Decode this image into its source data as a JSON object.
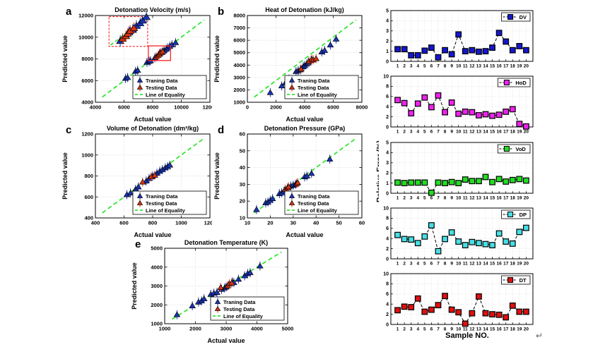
{
  "colors": {
    "training": "#1A35B8",
    "testing": "#D93511",
    "equality_line": "#33E633",
    "dv": "#1616CF",
    "hod": "#EE22EE",
    "vod": "#22DD22",
    "dp": "#45E0E6",
    "dt": "#DD1111",
    "grid": "#DBDBDB",
    "axis_box": "#000000",
    "zoom_box": "#FF2222",
    "marker_edge": "#000000"
  },
  "legend": {
    "training": "Traning Data",
    "testing": "Testing Data",
    "equality": "Line of Equality"
  },
  "right_column": {
    "ylabel": "Relative Error (%)",
    "xlabel": "Sample NO."
  },
  "misc": {
    "return_mark": "↵"
  },
  "chart_data": [
    {
      "kind": "scatter",
      "panel_label": "a",
      "title": "Detonation Velocity (m/s)",
      "xlabel": "Actual value",
      "ylabel": "Predicted value",
      "xlim": [
        4000,
        12000
      ],
      "ylim": [
        4000,
        12000
      ],
      "xticks": [
        4000,
        6000,
        8000,
        10000,
        12000
      ],
      "yticks": [
        4000,
        6000,
        8000,
        10000,
        12000
      ],
      "training": [
        [
          6100,
          6200
        ],
        [
          6250,
          6280
        ],
        [
          6800,
          6850
        ],
        [
          6950,
          6950
        ],
        [
          7600,
          7680
        ],
        [
          7750,
          7780
        ],
        [
          7850,
          7830
        ],
        [
          8150,
          8100
        ],
        [
          8500,
          8500
        ],
        [
          8650,
          8600
        ],
        [
          8800,
          8780
        ],
        [
          8950,
          8900
        ],
        [
          9050,
          9020
        ],
        [
          9200,
          9180
        ],
        [
          9350,
          9300
        ],
        [
          9600,
          9500
        ]
      ],
      "testing": [
        [
          8250,
          8200
        ],
        [
          8380,
          8320
        ],
        [
          8450,
          8430
        ],
        [
          8550,
          8560
        ],
        [
          8700,
          8680
        ]
      ],
      "zoom_rect": [
        7700,
        7850,
        9250,
        9200
      ],
      "inset_rect": [
        4950,
        9150,
        7650,
        11900
      ]
    },
    {
      "kind": "scatter",
      "panel_label": "b",
      "title": "Heat of Detonation (kJ/kg)",
      "xlabel": "Actual value",
      "ylabel": "Predicted value",
      "xlim": [
        0,
        8000
      ],
      "ylim": [
        1000,
        8000
      ],
      "xticks": [
        0,
        2000,
        4000,
        6000,
        8000
      ],
      "yticks": [
        1000,
        2000,
        3000,
        4000,
        5000,
        6000,
        7000,
        8000
      ],
      "training": [
        [
          1600,
          1780
        ],
        [
          2400,
          2320
        ],
        [
          2650,
          2550
        ],
        [
          2900,
          2870
        ],
        [
          3400,
          3480
        ],
        [
          3550,
          3560
        ],
        [
          3700,
          3620
        ],
        [
          3900,
          3870
        ],
        [
          4000,
          3960
        ],
        [
          4150,
          4100
        ],
        [
          4250,
          4180
        ],
        [
          4450,
          4380
        ],
        [
          5200,
          5060
        ],
        [
          5400,
          5180
        ],
        [
          5800,
          5620
        ],
        [
          6200,
          6100
        ]
      ],
      "testing": [
        [
          3750,
          3680
        ],
        [
          4300,
          4310
        ],
        [
          4500,
          4460
        ],
        [
          4600,
          4420
        ],
        [
          4800,
          4520
        ]
      ]
    },
    {
      "kind": "scatter",
      "panel_label": "c",
      "title": "Volume of Detonation (dm³/kg)",
      "xlabel": "Actual value",
      "ylabel": "Predicted value",
      "xlim": [
        400,
        1200
      ],
      "ylim": [
        400,
        1200
      ],
      "xticks": [
        400,
        600,
        800,
        1000,
        1200
      ],
      "yticks": [
        400,
        600,
        800,
        1000,
        1200
      ],
      "training": [
        [
          620,
          622
        ],
        [
          645,
          638
        ],
        [
          680,
          672
        ],
        [
          700,
          696
        ],
        [
          755,
          752
        ],
        [
          775,
          776
        ],
        [
          800,
          800
        ],
        [
          830,
          826
        ],
        [
          850,
          846
        ],
        [
          868,
          860
        ],
        [
          888,
          878
        ],
        [
          905,
          890
        ],
        [
          920,
          903
        ]
      ],
      "testing": [
        [
          730,
          742
        ],
        [
          790,
          792
        ],
        [
          815,
          808
        ]
      ]
    },
    {
      "kind": "scatter",
      "panel_label": "d",
      "title": "Detonation Pressure (GPa)",
      "xlabel": "Actual value",
      "ylabel": "Predicted value",
      "xlim": [
        10,
        60
      ],
      "ylim": [
        10,
        60
      ],
      "xticks": [
        10,
        20,
        30,
        40,
        50,
        60
      ],
      "yticks": [
        10,
        20,
        30,
        40,
        50,
        60
      ],
      "training": [
        [
          14,
          15
        ],
        [
          18,
          19
        ],
        [
          19,
          19.5
        ],
        [
          20,
          20.5
        ],
        [
          21,
          21.5
        ],
        [
          24,
          24.5
        ],
        [
          25,
          25
        ],
        [
          26,
          26
        ],
        [
          29,
          29
        ],
        [
          30,
          29.5
        ],
        [
          31,
          30
        ],
        [
          35,
          34.5
        ],
        [
          36,
          35
        ],
        [
          38,
          36.5
        ],
        [
          46,
          45
        ]
      ],
      "testing": [
        [
          26.5,
          27
        ],
        [
          27.5,
          28
        ],
        [
          28,
          28.5
        ],
        [
          31.5,
          30.5
        ],
        [
          32,
          31
        ]
      ]
    },
    {
      "kind": "scatter",
      "panel_label": "e",
      "title": "Detonation Temperature (K)",
      "xlabel": "Actual value",
      "ylabel": "Predicted value",
      "xlim": [
        1000,
        5000
      ],
      "ylim": [
        1000,
        5000
      ],
      "xticks": [
        1000,
        2000,
        3000,
        4000,
        5000
      ],
      "yticks": [
        1000,
        2000,
        3000,
        4000,
        5000
      ],
      "training": [
        [
          1400,
          1480
        ],
        [
          1900,
          1950
        ],
        [
          2100,
          2150
        ],
        [
          2200,
          2210
        ],
        [
          2280,
          2320
        ],
        [
          2500,
          2560
        ],
        [
          2600,
          2620
        ],
        [
          2700,
          2660
        ],
        [
          2850,
          2820
        ],
        [
          2950,
          2900
        ],
        [
          3000,
          2950
        ],
        [
          3200,
          3220
        ],
        [
          3250,
          3180
        ],
        [
          3400,
          3360
        ],
        [
          3600,
          3540
        ],
        [
          3700,
          3660
        ],
        [
          3780,
          3710
        ],
        [
          4100,
          4060
        ]
      ],
      "testing": [
        [
          2820,
          2920
        ],
        [
          3050,
          3010
        ],
        [
          3100,
          3120
        ],
        [
          3180,
          3160
        ]
      ]
    },
    {
      "kind": "error_line",
      "label": "DV",
      "color_key": "dv",
      "ylim": [
        0,
        5
      ],
      "yticks": [
        0,
        1,
        2,
        3,
        4,
        5
      ],
      "samples": [
        1,
        2,
        3,
        4,
        5,
        6,
        7,
        8,
        9,
        10,
        11,
        12,
        13,
        14,
        15,
        16,
        17,
        18,
        19,
        20
      ],
      "values": [
        1.2,
        1.2,
        0.6,
        0.6,
        1.05,
        1.35,
        0.4,
        1.1,
        0.7,
        2.65,
        1.0,
        1.1,
        0.95,
        1.0,
        1.35,
        2.8,
        1.95,
        1.1,
        1.5,
        1.1
      ]
    },
    {
      "kind": "error_line",
      "label": "HoD",
      "color_key": "hod",
      "ylim": [
        0,
        10
      ],
      "yticks": [
        0,
        2,
        4,
        6,
        8,
        10
      ],
      "samples": [
        1,
        2,
        3,
        4,
        5,
        6,
        7,
        8,
        9,
        10,
        11,
        12,
        13,
        14,
        15,
        16,
        17,
        18,
        19,
        20
      ],
      "values": [
        5.3,
        4.7,
        2.7,
        4.6,
        5.8,
        3.9,
        6.2,
        2.9,
        4.8,
        2.6,
        3.0,
        2.9,
        2.3,
        2.5,
        2.2,
        2.4,
        3.0,
        3.5,
        0.6,
        0.1
      ]
    },
    {
      "kind": "error_line",
      "label": "VoD",
      "color_key": "vod",
      "ylim": [
        0,
        5
      ],
      "yticks": [
        0,
        1,
        2,
        3,
        4,
        5
      ],
      "samples": [
        1,
        2,
        3,
        4,
        5,
        6,
        7,
        8,
        9,
        10,
        11,
        12,
        13,
        14,
        15,
        16,
        17,
        18,
        19,
        20
      ],
      "values": [
        1.05,
        1.0,
        1.05,
        1.05,
        1.05,
        0.05,
        1.05,
        1.0,
        1.1,
        1.0,
        1.35,
        1.2,
        1.2,
        1.6,
        1.1,
        1.4,
        1.15,
        1.3,
        1.4,
        1.25
      ]
    },
    {
      "kind": "error_line",
      "label": "DP",
      "color_key": "dp",
      "ylim": [
        0,
        10
      ],
      "yticks": [
        0,
        2,
        4,
        6,
        8,
        10
      ],
      "samples": [
        1,
        2,
        3,
        4,
        5,
        6,
        7,
        8,
        9,
        10,
        11,
        12,
        13,
        14,
        15,
        16,
        17,
        18,
        19,
        20
      ],
      "values": [
        4.7,
        3.9,
        3.8,
        3.1,
        4.4,
        6.6,
        1.5,
        3.9,
        5.2,
        3.4,
        2.7,
        3.3,
        3.1,
        2.9,
        2.7,
        5.0,
        3.4,
        3.0,
        5.3,
        6.1
      ]
    },
    {
      "kind": "error_line",
      "label": "DT",
      "color_key": "dt",
      "ylim": [
        0,
        10
      ],
      "yticks": [
        0,
        2,
        4,
        6,
        8,
        10
      ],
      "samples": [
        1,
        2,
        3,
        4,
        5,
        6,
        7,
        8,
        9,
        10,
        11,
        12,
        13,
        14,
        15,
        16,
        17,
        18,
        19,
        20
      ],
      "values": [
        2.8,
        3.5,
        3.4,
        5.1,
        2.5,
        2.9,
        3.8,
        5.6,
        2.9,
        2.4,
        0.15,
        2.2,
        5.5,
        2.2,
        2.0,
        1.9,
        1.4,
        3.7,
        2.5,
        2.5
      ]
    }
  ]
}
